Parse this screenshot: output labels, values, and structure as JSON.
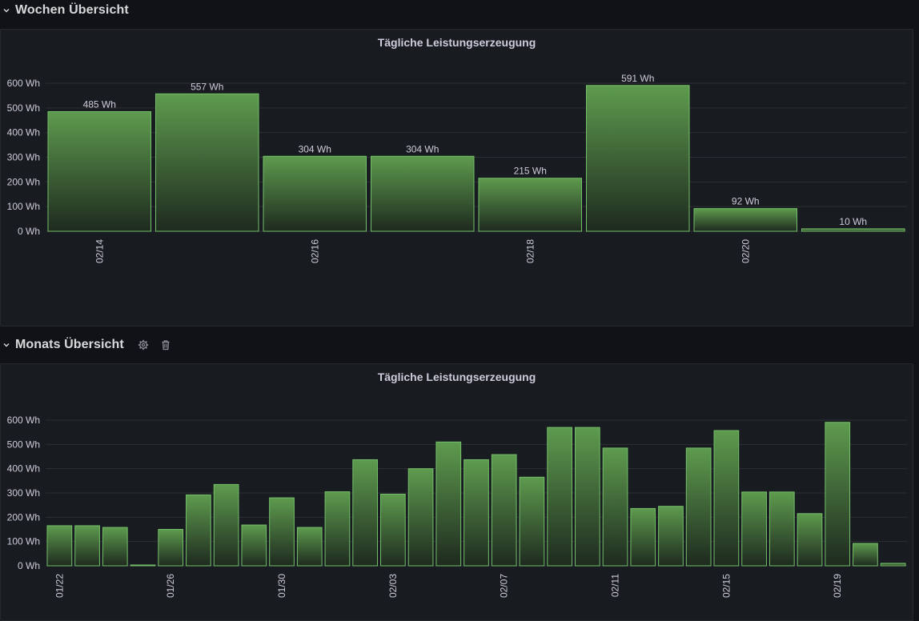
{
  "rows": [
    {
      "title": "Wochen Übersicht",
      "panel_title": "Tägliche Leistungserzeugung"
    },
    {
      "title": "Monats Übersicht",
      "panel_title": "Tägliche Leistungserzeugung"
    }
  ],
  "icons": {
    "collapse": "chevron-down-icon",
    "settings": "gear-icon",
    "delete": "trash-icon"
  },
  "colors": {
    "bar_fill_top": "#5e9b4e",
    "bar_fill_bottom": "#1e2a1f",
    "bar_stroke": "#73bf69",
    "grid": "#2c2f35",
    "axis_text": "#ccccdc"
  },
  "chart_data": [
    {
      "type": "bar",
      "title": "Tägliche Leistungserzeugung",
      "unit": "Wh",
      "ylim": [
        0,
        600
      ],
      "yticks": [
        "0 Wh",
        "100 Wh",
        "200 Wh",
        "300 Wh",
        "400 Wh",
        "500 Wh",
        "600 Wh"
      ],
      "values": [
        485,
        557,
        304,
        304,
        215,
        591,
        92,
        10
      ],
      "data_labels": [
        "485 Wh",
        "557 Wh",
        "304 Wh",
        "304 Wh",
        "215 Wh",
        "591 Wh",
        "92 Wh",
        "10 Wh"
      ],
      "xtick_labels": [
        "02/14",
        "02/16",
        "02/18",
        "02/20"
      ],
      "xtick_bar_index": [
        0,
        2,
        4,
        6
      ]
    },
    {
      "type": "bar",
      "title": "Tägliche Leistungserzeugung",
      "unit": "Wh",
      "ylim": [
        0,
        600
      ],
      "yticks": [
        "0 Wh",
        "100 Wh",
        "200 Wh",
        "300 Wh",
        "400 Wh",
        "500 Wh",
        "600 Wh"
      ],
      "values": [
        165,
        165,
        158,
        0,
        150,
        292,
        335,
        168,
        280,
        158,
        305,
        437,
        295,
        400,
        510,
        437,
        458,
        365,
        570,
        570,
        485,
        236,
        245,
        485,
        557,
        304,
        304,
        215,
        591,
        92,
        10
      ],
      "xtick_labels": [
        "01/22",
        "01/26",
        "01/30",
        "02/03",
        "02/07",
        "02/11",
        "02/15",
        "02/19"
      ],
      "xtick_bar_index": [
        0,
        4,
        8,
        12,
        16,
        20,
        24,
        28
      ]
    }
  ]
}
